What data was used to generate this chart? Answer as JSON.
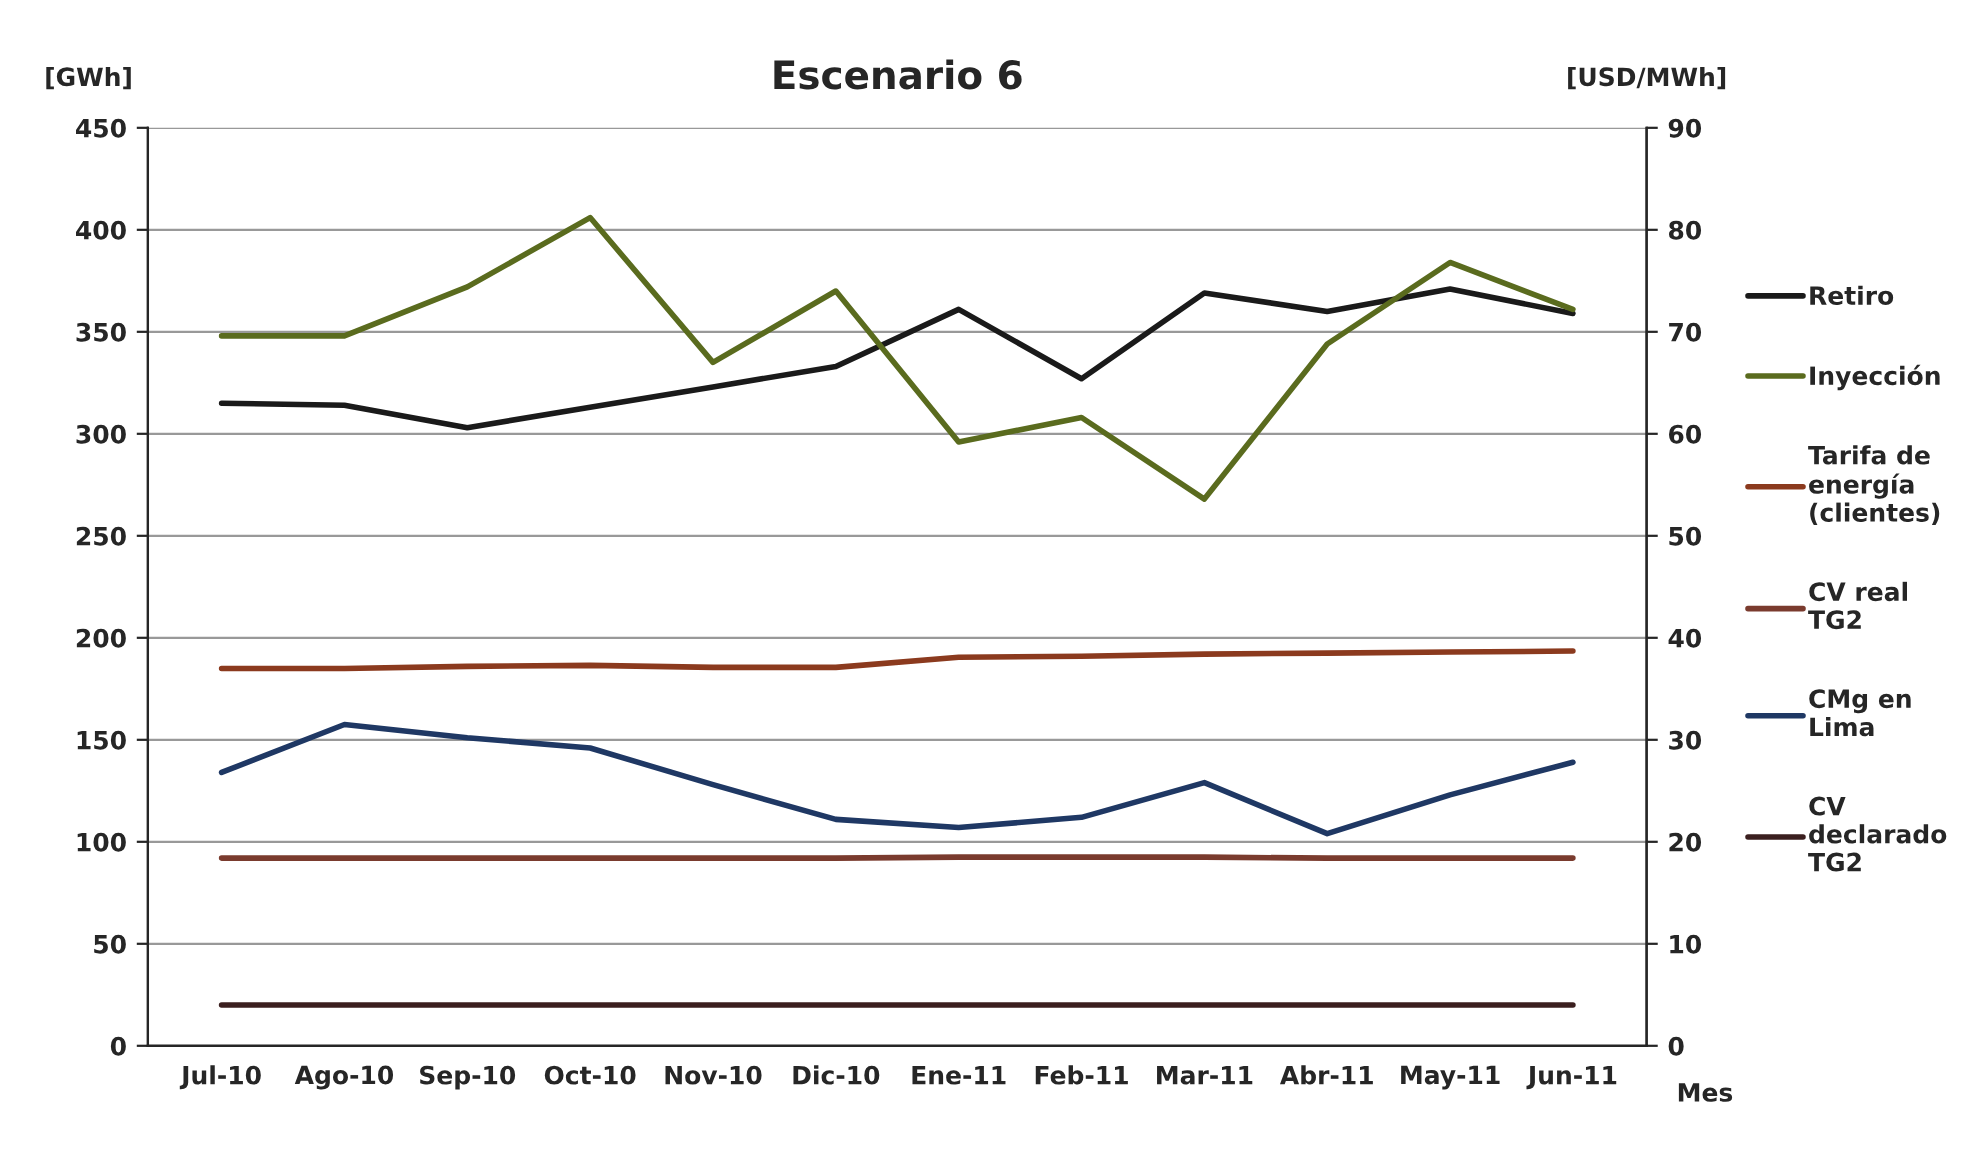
{
  "chart_data": {
    "type": "line",
    "title": "Escenario 6",
    "xlabel": "Mes",
    "ylabel": "[GWh]",
    "y2label": "[USD/MWh]",
    "categories": [
      "Jul-10",
      "Ago-10",
      "Sep-10",
      "Oct-10",
      "Nov-10",
      "Dic-10",
      "Ene-11",
      "Feb-11",
      "Mar-11",
      "Abr-11",
      "May-11",
      "Jun-11"
    ],
    "series": [
      {
        "name": "Retiro",
        "color": "#1a1a1a",
        "values": [
          315,
          314,
          303,
          313,
          323,
          333,
          361,
          327,
          369,
          360,
          371,
          359
        ]
      },
      {
        "name": "Inyección",
        "color": "#5a6b1e",
        "values": [
          348,
          348,
          372,
          406,
          335,
          370,
          296,
          308,
          268,
          344,
          384,
          361
        ]
      },
      {
        "name": "Tarifa de\nenergía\n(clientes)",
        "color": "#8b3a1e",
        "axis": "y2",
        "values": [
          37.0,
          37.0,
          37.2,
          37.3,
          37.1,
          37.1,
          38.1,
          38.2,
          38.4,
          38.5,
          38.6,
          38.7
        ]
      },
      {
        "name": "CV real\nTG2",
        "color": "#7a3b2e",
        "axis": "y2",
        "values": [
          18.4,
          18.4,
          18.4,
          18.4,
          18.4,
          18.4,
          18.5,
          18.5,
          18.5,
          18.4,
          18.4,
          18.4
        ]
      },
      {
        "name": "CMg en\nLima",
        "color": "#1f3864",
        "axis": "y2",
        "values": [
          26.8,
          31.5,
          30.2,
          29.2,
          25.6,
          22.2,
          21.4,
          22.4,
          25.8,
          20.8,
          24.6,
          27.8
        ]
      },
      {
        "name": "CV\ndeclarado\nTG2",
        "color": "#3b1f1f",
        "axis": "y2",
        "values": [
          4,
          4,
          4,
          4,
          4,
          4,
          4,
          4,
          4,
          4,
          4,
          4
        ]
      }
    ],
    "ylim": [
      0,
      450
    ],
    "yticks": [
      0,
      50,
      100,
      150,
      200,
      250,
      300,
      350,
      400,
      450
    ],
    "y2lim": [
      0,
      90
    ],
    "y2ticks": [
      0,
      10,
      20,
      30,
      40,
      50,
      60,
      70,
      80,
      90
    ],
    "grid": "y",
    "legend": "right",
    "marker": "none",
    "line_style": "solid"
  }
}
